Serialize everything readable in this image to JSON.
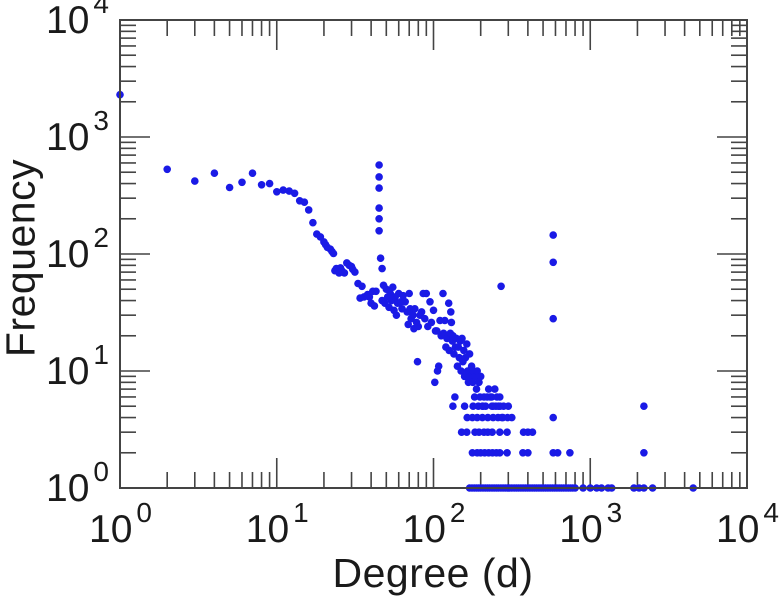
{
  "page": {
    "background": "#ffffff"
  },
  "chart_data": {
    "type": "scatter",
    "title": "",
    "xlabel": "Degree (d)",
    "ylabel": "Frequency",
    "x_scale": "log",
    "y_scale": "log",
    "xlim": [
      1,
      10000
    ],
    "ylim": [
      1,
      10000
    ],
    "x_tick_exponents": [
      0,
      1,
      2,
      3,
      4
    ],
    "y_tick_exponents": [
      0,
      1,
      2,
      3,
      4
    ],
    "tick_label_base": "10",
    "grid": false,
    "legend": null,
    "marker": {
      "shape": "circle",
      "color": "#1a1ae6",
      "radius_px": 3.8
    },
    "axis_color": "#444444",
    "text_color": "#1a1a1a",
    "points": [
      [
        1,
        2300
      ],
      [
        2,
        530
      ],
      [
        3,
        420
      ],
      [
        4,
        490
      ],
      [
        5,
        370
      ],
      [
        6,
        410
      ],
      [
        7,
        490
      ],
      [
        8,
        390
      ],
      [
        9,
        400
      ],
      [
        10,
        340
      ],
      [
        11,
        352
      ],
      [
        12,
        345
      ],
      [
        13,
        330
      ],
      [
        14,
        285
      ],
      [
        15,
        277
      ],
      [
        16,
        238
      ],
      [
        17,
        185
      ],
      [
        18,
        148
      ],
      [
        19,
        140
      ],
      [
        20,
        127
      ],
      [
        20.5,
        120
      ],
      [
        21,
        114
      ],
      [
        22,
        110
      ],
      [
        22.5,
        105
      ],
      [
        23,
        101
      ],
      [
        23.5,
        72
      ],
      [
        24,
        75
      ],
      [
        25,
        69
      ],
      [
        25.5,
        76
      ],
      [
        26,
        72
      ],
      [
        27,
        69
      ],
      [
        28,
        84
      ],
      [
        29,
        80
      ],
      [
        30,
        78
      ],
      [
        30.5,
        74
      ],
      [
        31.5,
        70
      ],
      [
        33,
        56
      ],
      [
        34,
        42
      ],
      [
        35,
        53
      ],
      [
        36,
        43
      ],
      [
        38,
        45
      ],
      [
        39,
        43
      ],
      [
        40,
        38
      ],
      [
        41,
        48
      ],
      [
        42,
        36
      ],
      [
        43,
        48
      ],
      [
        45,
        576
      ],
      [
        45,
        456
      ],
      [
        45,
        366
      ],
      [
        45,
        247
      ],
      [
        45,
        200
      ],
      [
        45,
        158
      ],
      [
        46,
        92
      ],
      [
        47,
        75
      ],
      [
        47,
        40
      ],
      [
        48,
        54
      ],
      [
        49,
        38
      ],
      [
        50,
        50
      ],
      [
        51,
        43
      ],
      [
        52,
        35
      ],
      [
        53,
        46
      ],
      [
        54,
        40
      ],
      [
        55,
        52
      ],
      [
        56,
        33
      ],
      [
        57,
        43
      ],
      [
        58,
        30
      ],
      [
        59,
        38
      ],
      [
        60,
        46
      ],
      [
        62,
        39
      ],
      [
        63,
        34
      ],
      [
        64,
        44
      ],
      [
        66,
        39
      ],
      [
        68,
        32
      ],
      [
        69,
        25
      ],
      [
        70,
        46
      ],
      [
        71,
        34
      ],
      [
        72,
        28
      ],
      [
        74,
        30
      ],
      [
        75,
        23
      ],
      [
        76,
        34
      ],
      [
        78,
        26
      ],
      [
        79,
        12
      ],
      [
        80,
        24
      ],
      [
        82,
        30
      ],
      [
        84,
        32
      ],
      [
        86,
        46
      ],
      [
        88,
        28
      ],
      [
        90,
        46
      ],
      [
        92,
        24
      ],
      [
        95,
        39
      ],
      [
        97,
        26
      ],
      [
        100,
        33
      ],
      [
        102,
        8
      ],
      [
        103,
        22
      ],
      [
        105,
        22
      ],
      [
        106,
        10
      ],
      [
        108,
        11
      ],
      [
        110,
        27
      ],
      [
        112,
        20
      ],
      [
        115,
        46
      ],
      [
        116,
        21
      ],
      [
        118,
        27
      ],
      [
        120,
        16
      ],
      [
        122,
        19
      ],
      [
        125,
        38
      ],
      [
        126,
        15
      ],
      [
        128,
        21
      ],
      [
        129,
        32
      ],
      [
        130,
        26
      ],
      [
        132,
        18
      ],
      [
        133,
        20
      ],
      [
        135,
        14
      ],
      [
        137,
        6
      ],
      [
        138,
        16
      ],
      [
        140,
        19
      ],
      [
        142,
        11
      ],
      [
        144,
        16
      ],
      [
        146,
        13
      ],
      [
        148,
        18
      ],
      [
        150,
        10
      ],
      [
        152,
        19
      ],
      [
        154,
        12
      ],
      [
        156,
        15
      ],
      [
        158,
        9
      ],
      [
        160,
        13
      ],
      [
        163,
        17
      ],
      [
        165,
        10
      ],
      [
        167,
        8
      ],
      [
        170,
        14
      ],
      [
        172,
        9
      ],
      [
        175,
        11
      ],
      [
        178,
        8
      ],
      [
        180,
        10
      ],
      [
        183,
        6
      ],
      [
        185,
        9
      ],
      [
        188,
        7
      ],
      [
        190,
        10
      ],
      [
        193,
        5
      ],
      [
        195,
        8
      ],
      [
        198,
        6
      ],
      [
        200,
        9
      ],
      [
        205,
        5
      ],
      [
        210,
        6
      ],
      [
        215,
        5
      ],
      [
        220,
        6
      ],
      [
        225,
        7
      ],
      [
        230,
        6
      ],
      [
        235,
        6
      ],
      [
        240,
        5
      ],
      [
        246,
        7
      ],
      [
        250,
        5
      ],
      [
        254,
        6
      ],
      [
        260,
        5
      ],
      [
        265,
        6
      ],
      [
        270,
        53
      ],
      [
        273,
        4
      ],
      [
        280,
        5
      ],
      [
        133,
        5
      ],
      [
        158,
        5
      ],
      [
        179,
        5
      ],
      [
        207,
        5
      ],
      [
        236,
        5
      ],
      [
        266,
        5
      ],
      [
        300,
        5
      ],
      [
        164,
        4
      ],
      [
        177,
        4
      ],
      [
        190,
        4
      ],
      [
        205,
        4
      ],
      [
        222,
        4
      ],
      [
        240,
        4
      ],
      [
        258,
        4
      ],
      [
        277,
        4
      ],
      [
        297,
        4
      ],
      [
        316,
        4
      ],
      [
        151,
        3
      ],
      [
        163,
        3
      ],
      [
        184,
        3
      ],
      [
        195,
        3
      ],
      [
        210,
        3
      ],
      [
        222,
        3
      ],
      [
        237,
        3
      ],
      [
        265,
        3
      ],
      [
        295,
        3
      ],
      [
        375,
        3
      ],
      [
        400,
        3
      ],
      [
        428,
        3
      ],
      [
        177,
        2
      ],
      [
        190,
        2
      ],
      [
        200,
        2
      ],
      [
        212,
        2
      ],
      [
        225,
        2
      ],
      [
        238,
        2
      ],
      [
        252,
        2
      ],
      [
        265,
        2
      ],
      [
        295,
        2
      ],
      [
        372,
        2
      ],
      [
        400,
        2
      ],
      [
        580,
        2
      ],
      [
        620,
        2
      ],
      [
        742,
        2
      ],
      [
        2200,
        2
      ],
      [
        580,
        145
      ],
      [
        580,
        85
      ],
      [
        580,
        28
      ],
      [
        580,
        4
      ],
      [
        2200,
        5
      ],
      [
        170,
        1
      ],
      [
        176,
        1
      ],
      [
        182,
        1
      ],
      [
        188,
        1
      ],
      [
        194,
        1
      ],
      [
        200,
        1
      ],
      [
        207,
        1
      ],
      [
        214,
        1
      ],
      [
        221,
        1
      ],
      [
        228,
        1
      ],
      [
        236,
        1
      ],
      [
        244,
        1
      ],
      [
        252,
        1
      ],
      [
        260,
        1
      ],
      [
        269,
        1
      ],
      [
        278,
        1
      ],
      [
        287,
        1
      ],
      [
        296,
        1
      ],
      [
        306,
        1
      ],
      [
        316,
        1
      ],
      [
        327,
        1
      ],
      [
        338,
        1
      ],
      [
        349,
        1
      ],
      [
        361,
        1
      ],
      [
        373,
        1
      ],
      [
        386,
        1
      ],
      [
        399,
        1
      ],
      [
        412,
        1
      ],
      [
        426,
        1
      ],
      [
        440,
        1
      ],
      [
        455,
        1
      ],
      [
        470,
        1
      ],
      [
        486,
        1
      ],
      [
        502,
        1
      ],
      [
        519,
        1
      ],
      [
        537,
        1
      ],
      [
        555,
        1
      ],
      [
        574,
        1
      ],
      [
        593,
        1
      ],
      [
        613,
        1
      ],
      [
        634,
        1
      ],
      [
        655,
        1
      ],
      [
        677,
        1
      ],
      [
        700,
        1
      ],
      [
        724,
        1
      ],
      [
        748,
        1
      ],
      [
        773,
        1
      ],
      [
        800,
        1
      ],
      [
        900,
        1
      ],
      [
        1000,
        1
      ],
      [
        1100,
        1
      ],
      [
        1180,
        1
      ],
      [
        1300,
        1
      ],
      [
        1370,
        1
      ],
      [
        1900,
        1
      ],
      [
        2050,
        1
      ],
      [
        2200,
        1
      ],
      [
        2500,
        1
      ],
      [
        4540,
        1
      ]
    ]
  }
}
